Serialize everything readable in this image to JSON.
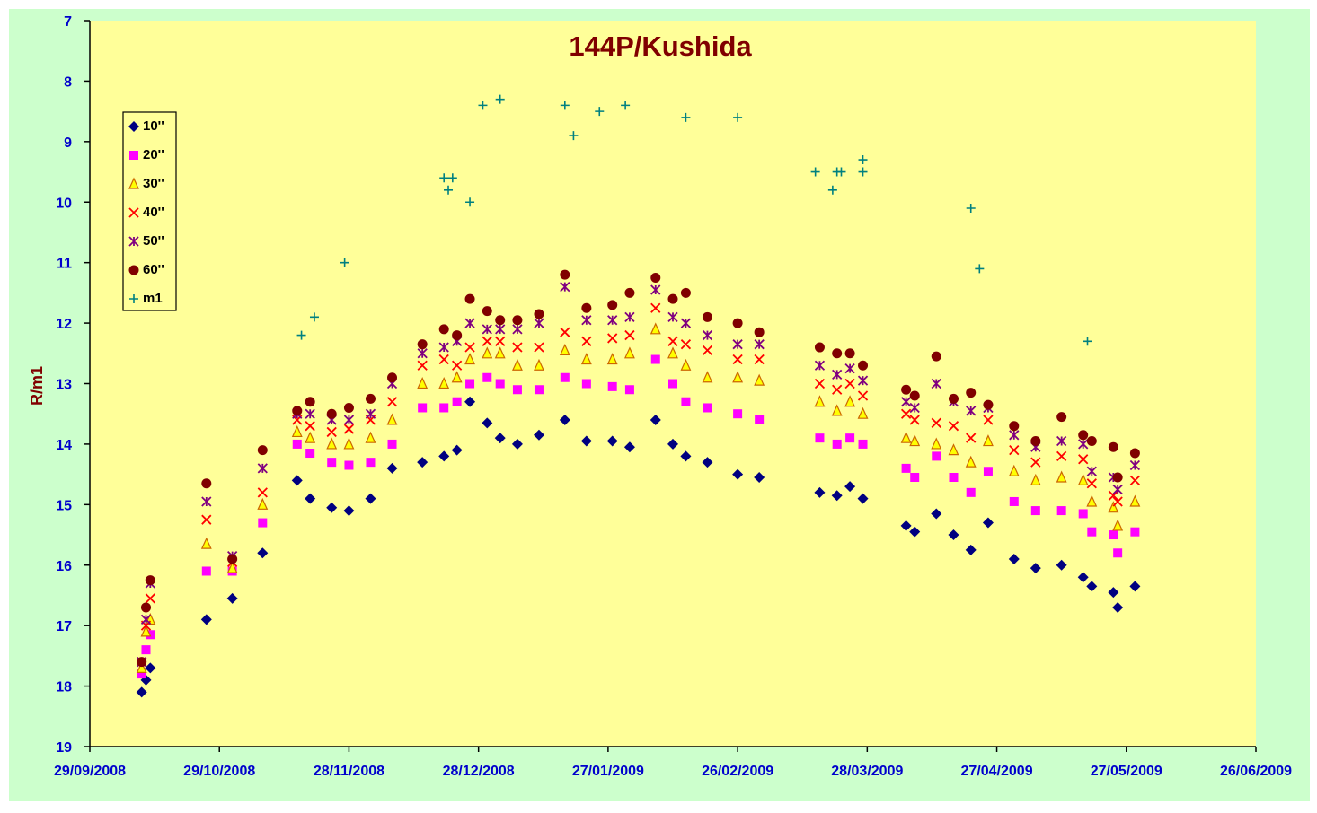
{
  "chart_data": {
    "type": "scatter",
    "title": "144P/Kushida",
    "y_label": "R/m1",
    "xlim": [
      "2008-09-29",
      "2009-06-26"
    ],
    "xticks": [
      {
        "value": "2008-09-29",
        "label": "29/09/2008"
      },
      {
        "value": "2008-10-29",
        "label": "29/10/2008"
      },
      {
        "value": "2008-11-28",
        "label": "28/11/2008"
      },
      {
        "value": "2008-12-28",
        "label": "28/12/2008"
      },
      {
        "value": "2009-01-27",
        "label": "27/01/2009"
      },
      {
        "value": "2009-02-26",
        "label": "26/02/2009"
      },
      {
        "value": "2009-03-28",
        "label": "28/03/2009"
      },
      {
        "value": "2009-04-27",
        "label": "27/04/2009"
      },
      {
        "value": "2009-05-27",
        "label": "27/05/2009"
      },
      {
        "value": "2009-06-26",
        "label": "26/06/2009"
      }
    ],
    "ylim": [
      19,
      7
    ],
    "yticks": [
      7,
      8,
      9,
      10,
      11,
      12,
      13,
      14,
      15,
      16,
      17,
      18,
      19
    ],
    "legend": "top-left",
    "x": [
      "2008-10-11",
      "2008-10-12",
      "2008-10-13",
      "2008-10-26",
      "2008-11-01",
      "2008-11-08",
      "2008-11-16",
      "2008-11-19",
      "2008-11-24",
      "2008-11-28",
      "2008-12-03",
      "2008-12-08",
      "2008-12-15",
      "2008-12-20",
      "2008-12-23",
      "2008-12-26",
      "2008-12-30",
      "2009-01-02",
      "2009-01-06",
      "2009-01-11",
      "2009-01-17",
      "2009-01-22",
      "2009-01-28",
      "2009-02-01",
      "2009-02-07",
      "2009-02-11",
      "2009-02-14",
      "2009-02-19",
      "2009-02-26",
      "2009-03-03",
      "2009-03-17",
      "2009-03-21",
      "2009-03-24",
      "2009-03-27",
      "2009-04-06",
      "2009-04-08",
      "2009-04-13",
      "2009-04-17",
      "2009-04-21",
      "2009-04-25",
      "2009-05-01",
      "2009-05-06",
      "2009-05-12",
      "2009-05-17",
      "2009-05-19",
      "2009-05-24",
      "2009-05-25",
      "2009-05-29"
    ],
    "series": [
      {
        "name": "10''",
        "marker": "diamond",
        "color": "#000080",
        "values": [
          18.1,
          17.9,
          17.7,
          16.9,
          16.55,
          15.8,
          14.6,
          14.9,
          15.05,
          15.1,
          14.9,
          14.4,
          14.3,
          14.2,
          14.1,
          13.3,
          13.65,
          13.9,
          14.0,
          13.85,
          13.6,
          13.95,
          13.95,
          14.05,
          13.6,
          14.0,
          14.2,
          14.3,
          14.5,
          14.55,
          14.8,
          14.85,
          14.7,
          14.9,
          15.35,
          15.45,
          15.15,
          15.5,
          15.75,
          15.3,
          15.9,
          16.05,
          16.0,
          16.2,
          16.35,
          16.45,
          16.7,
          16.35
        ]
      },
      {
        "name": "20''",
        "marker": "square",
        "color": "#ff00ff",
        "values": [
          17.8,
          17.4,
          17.15,
          16.1,
          16.1,
          15.3,
          14.0,
          14.15,
          14.3,
          14.35,
          14.3,
          14.0,
          13.4,
          13.4,
          13.3,
          13.0,
          12.9,
          13.0,
          13.1,
          13.1,
          12.9,
          13.0,
          13.05,
          13.1,
          12.6,
          13.0,
          13.3,
          13.4,
          13.5,
          13.6,
          13.9,
          14.0,
          13.9,
          14.0,
          14.4,
          14.55,
          14.2,
          14.55,
          14.8,
          14.45,
          14.95,
          15.1,
          15.1,
          15.15,
          15.45,
          15.5,
          15.8,
          15.45
        ]
      },
      {
        "name": "30''",
        "marker": "triangle",
        "color": "#ffff00",
        "values": [
          17.7,
          17.1,
          16.9,
          15.65,
          16.05,
          15.0,
          13.8,
          13.9,
          14.0,
          14.0,
          13.9,
          13.6,
          13.0,
          13.0,
          12.9,
          12.6,
          12.5,
          12.5,
          12.7,
          12.7,
          12.45,
          12.6,
          12.6,
          12.5,
          12.1,
          12.5,
          12.7,
          12.9,
          12.9,
          12.95,
          13.3,
          13.45,
          13.3,
          13.5,
          13.9,
          13.95,
          14.0,
          14.1,
          14.3,
          13.95,
          14.45,
          14.6,
          14.55,
          14.6,
          14.95,
          15.05,
          15.35,
          14.95
        ]
      },
      {
        "name": "40''",
        "marker": "x",
        "color": "#ff0000",
        "values": [
          17.6,
          17.0,
          16.55,
          15.25,
          15.95,
          14.8,
          13.6,
          13.7,
          13.8,
          13.75,
          13.6,
          13.3,
          12.7,
          12.6,
          12.7,
          12.4,
          12.3,
          12.3,
          12.4,
          12.4,
          12.15,
          12.3,
          12.25,
          12.2,
          11.75,
          12.3,
          12.35,
          12.45,
          12.6,
          12.6,
          13.0,
          13.1,
          13.0,
          13.2,
          13.5,
          13.6,
          13.65,
          13.7,
          13.9,
          13.6,
          14.1,
          14.3,
          14.2,
          14.25,
          14.65,
          14.85,
          14.95,
          14.6
        ]
      },
      {
        "name": "50''",
        "marker": "star",
        "color": "#800080",
        "values": [
          17.6,
          16.9,
          16.3,
          14.95,
          15.85,
          14.4,
          13.5,
          13.5,
          13.6,
          13.6,
          13.5,
          13.0,
          12.5,
          12.4,
          12.3,
          12.0,
          12.1,
          12.1,
          12.1,
          12.0,
          11.4,
          11.95,
          11.95,
          11.9,
          11.45,
          11.9,
          12.0,
          12.2,
          12.35,
          12.35,
          12.7,
          12.85,
          12.75,
          12.95,
          13.3,
          13.4,
          13.0,
          13.3,
          13.45,
          13.4,
          13.85,
          14.05,
          13.95,
          14.0,
          14.45,
          14.55,
          14.75,
          14.35
        ]
      },
      {
        "name": "60''",
        "marker": "circle",
        "color": "#800000",
        "values": [
          17.6,
          16.7,
          16.25,
          14.65,
          15.9,
          14.1,
          13.45,
          13.3,
          13.5,
          13.4,
          13.25,
          12.9,
          12.35,
          12.1,
          12.2,
          11.6,
          11.8,
          11.95,
          11.95,
          11.85,
          11.2,
          11.75,
          11.7,
          11.5,
          11.25,
          11.6,
          11.5,
          11.9,
          12.0,
          12.15,
          12.4,
          12.5,
          12.5,
          12.7,
          13.1,
          13.2,
          12.55,
          13.25,
          13.15,
          13.35,
          13.7,
          13.95,
          13.55,
          13.85,
          13.95,
          14.05,
          14.55,
          14.15
        ]
      },
      {
        "name": "m1",
        "marker": "plus",
        "color": "#008080",
        "x": [
          "2008-11-17",
          "2008-11-20",
          "2008-11-27",
          "2008-12-20",
          "2008-12-21",
          "2008-12-22",
          "2008-12-26",
          "2008-12-29",
          "2009-01-02",
          "2009-01-17",
          "2009-01-19",
          "2009-01-25",
          "2009-01-31",
          "2009-02-14",
          "2009-02-26",
          "2009-03-16",
          "2009-03-20",
          "2009-03-21",
          "2009-03-22",
          "2009-03-27",
          "2009-03-27",
          "2009-04-21",
          "2009-04-23",
          "2009-05-18"
        ],
        "values": [
          12.2,
          11.9,
          11.0,
          9.6,
          9.8,
          9.6,
          10.0,
          8.4,
          8.3,
          8.4,
          8.9,
          8.5,
          8.4,
          8.6,
          8.6,
          9.5,
          9.8,
          9.5,
          9.5,
          9.3,
          9.5,
          10.1,
          11.1,
          12.3
        ]
      }
    ]
  }
}
